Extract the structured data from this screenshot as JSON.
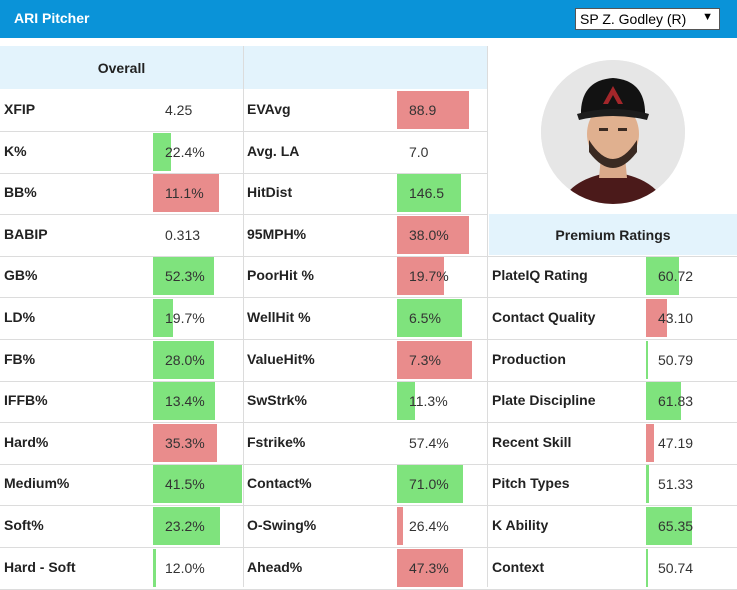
{
  "header": {
    "title": "ARI Pitcher",
    "selected_pitcher": "SP Z. Godley (R)",
    "caret": "▼"
  },
  "columns": {
    "overall_header": "Overall",
    "middle_header": ""
  },
  "player": {
    "photo": "player-headshot",
    "team_logo_letter": "A"
  },
  "premium": {
    "header": "Premium Ratings"
  },
  "colors": {
    "accent": "#0a93d8",
    "good": "#7fe37d",
    "bad": "#e98c8c",
    "header_bg": "#e3f3fc"
  },
  "rows": [
    {
      "l1": "XFIP",
      "v1": "4.25",
      "f1": 0,
      "c1": "",
      "l2": "EVAvg",
      "v2": "88.9",
      "f2": 0.81,
      "c2": "red",
      "l3": "",
      "v3": "",
      "f3": 0,
      "c3": ""
    },
    {
      "l1": "K%",
      "v1": "22.4%",
      "f1": 0.2,
      "c1": "green",
      "l2": "Avg. LA",
      "v2": "7.0",
      "f2": 0,
      "c2": "",
      "l3": "",
      "v3": "",
      "f3": 0,
      "c3": ""
    },
    {
      "l1": "BB%",
      "v1": "11.1%",
      "f1": 0.74,
      "c1": "red",
      "l2": "HitDist",
      "v2": "146.5",
      "f2": 0.72,
      "c2": "green",
      "l3": "",
      "v3": "",
      "f3": 0,
      "c3": ""
    },
    {
      "l1": "BABIP",
      "v1": "0.313",
      "f1": 0,
      "c1": "",
      "l2": "95MPH%",
      "v2": "38.0%",
      "f2": 0.81,
      "c2": "red",
      "l3": "",
      "v3": "",
      "f3": 0,
      "c3": ""
    },
    {
      "l1": "GB%",
      "v1": "52.3%",
      "f1": 0.69,
      "c1": "green",
      "l2": "PoorHit %",
      "v2": "19.7%",
      "f2": 0.53,
      "c2": "red",
      "l3": "PlateIQ Rating",
      "v3": "60.72",
      "f3": 0.36,
      "c3": "green"
    },
    {
      "l1": "LD%",
      "v1": "19.7%",
      "f1": 0.23,
      "c1": "green",
      "l2": "WellHit %",
      "v2": "6.5%",
      "f2": 0.73,
      "c2": "green",
      "l3": "Contact Quality",
      "v3": "43.10",
      "f3": 0.23,
      "c3": "red"
    },
    {
      "l1": "FB%",
      "v1": "28.0%",
      "f1": 0.69,
      "c1": "green",
      "l2": "ValueHit%",
      "v2": "7.3%",
      "f2": 0.84,
      "c2": "red",
      "l3": "Production",
      "v3": "50.79",
      "f3": 0.02,
      "c3": "green"
    },
    {
      "l1": "IFFB%",
      "v1": "13.4%",
      "f1": 0.7,
      "c1": "green",
      "l2": "SwStrk%",
      "v2": "11.3%",
      "f2": 0.2,
      "c2": "green",
      "l3": "Plate Discipline",
      "v3": "61.83",
      "f3": 0.39,
      "c3": "green"
    },
    {
      "l1": "Hard%",
      "v1": "35.3%",
      "f1": 0.72,
      "c1": "red",
      "l2": "Fstrike%",
      "v2": "57.4%",
      "f2": 0,
      "c2": "",
      "l3": "Recent Skill",
      "v3": "47.19",
      "f3": 0.09,
      "c3": "red"
    },
    {
      "l1": "Medium%",
      "v1": "41.5%",
      "f1": 1.0,
      "c1": "green",
      "l2": "Contact%",
      "v2": "71.0%",
      "f2": 0.74,
      "c2": "green",
      "l3": "Pitch Types",
      "v3": "51.33",
      "f3": 0.03,
      "c3": "green"
    },
    {
      "l1": "Soft%",
      "v1": "23.2%",
      "f1": 0.75,
      "c1": "green",
      "l2": "O-Swing%",
      "v2": "26.4%",
      "f2": 0.07,
      "c2": "red",
      "l3": "K Ability",
      "v3": "65.35",
      "f3": 0.5,
      "c3": "green"
    },
    {
      "l1": "Hard - Soft",
      "v1": "12.0%",
      "f1": 0.03,
      "c1": "green",
      "l2": "Ahead%",
      "v2": "47.3%",
      "f2": 0.74,
      "c2": "red",
      "l3": "Context",
      "v3": "50.74",
      "f3": 0.02,
      "c3": "green"
    }
  ]
}
